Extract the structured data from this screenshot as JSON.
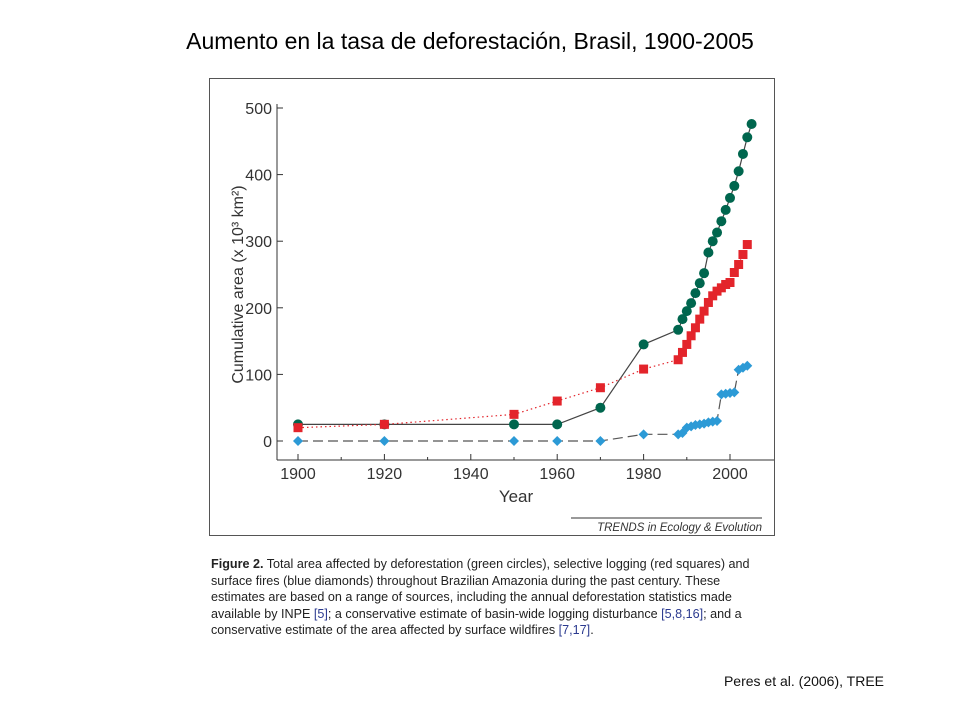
{
  "slide": {
    "title": "Aumento en la tasa de deforestación, Brasil, 1900-2005",
    "credit": "Peres et al. (2006), TREE"
  },
  "figure": {
    "journal": "TRENDS in Ecology & Evolution",
    "caption": {
      "label": "Figure 2.",
      "text_1": " Total area affected by deforestation (green circles), selective logging (red squares) and surface fires (blue diamonds) throughout Brazilian Amazonia during the past century. These estimates are based on a range of sources, including the annual deforestation statistics made available by INPE ",
      "ref_1": "[5]",
      "text_2": "; a conservative estimate of basin-wide logging disturbance ",
      "ref_2": "[5,8,16]",
      "text_3": "; and a conservative estimate of the area affected by surface wildfires ",
      "ref_3": "[7,17]",
      "text_4": "."
    }
  },
  "chart_data": {
    "type": "line",
    "title": "",
    "xlabel": "Year",
    "ylabel": "Cumulative area (x 10³ km²)",
    "xlim": [
      1900,
      2007
    ],
    "ylim": [
      -10,
      510
    ],
    "xticks": [
      1900,
      1920,
      1940,
      1960,
      1980,
      2000
    ],
    "yticks": [
      0,
      100,
      200,
      300,
      400,
      500
    ],
    "grid": false,
    "legend": "none",
    "series": [
      {
        "key": "deforestation",
        "color": "#00664e",
        "marker": "circle",
        "line": "solid",
        "x": [
          1900,
          1920,
          1950,
          1960,
          1970,
          1980,
          1988,
          1989,
          1990,
          1991,
          1992,
          1993,
          1994,
          1995,
          1996,
          1997,
          1998,
          1999,
          2000,
          2001,
          2002,
          2003,
          2004,
          2005
        ],
        "y": [
          25,
          25,
          25,
          25,
          50,
          145,
          167,
          183,
          195,
          207,
          222,
          237,
          252,
          283,
          300,
          313,
          330,
          347,
          365,
          383,
          405,
          431,
          456,
          476
        ]
      },
      {
        "key": "selective_logging",
        "color": "#e3242b",
        "marker": "square",
        "line": "dotted",
        "x": [
          1900,
          1920,
          1950,
          1960,
          1970,
          1980,
          1988,
          1989,
          1990,
          1991,
          1992,
          1993,
          1994,
          1995,
          1996,
          1997,
          1998,
          1999,
          2000,
          2001,
          2002,
          2003,
          2004
        ],
        "y": [
          20,
          25,
          40,
          60,
          80,
          108,
          122,
          133,
          145,
          158,
          170,
          183,
          195,
          208,
          218,
          225,
          230,
          235,
          238,
          253,
          265,
          280,
          295
        ]
      },
      {
        "key": "surface_fires",
        "color": "#2c9ad6",
        "marker": "diamond",
        "line": "dashed",
        "x": [
          1900,
          1920,
          1950,
          1960,
          1970,
          1980,
          1988,
          1989,
          1990,
          1991,
          1992,
          1993,
          1994,
          1995,
          1996,
          1997,
          1998,
          1999,
          2000,
          2001,
          2002,
          2003,
          2004
        ],
        "y": [
          0,
          0,
          0,
          0,
          0,
          10,
          10,
          12,
          20,
          22,
          24,
          25,
          26,
          28,
          29,
          30,
          70,
          71,
          72,
          73,
          107,
          110,
          113
        ]
      }
    ]
  }
}
